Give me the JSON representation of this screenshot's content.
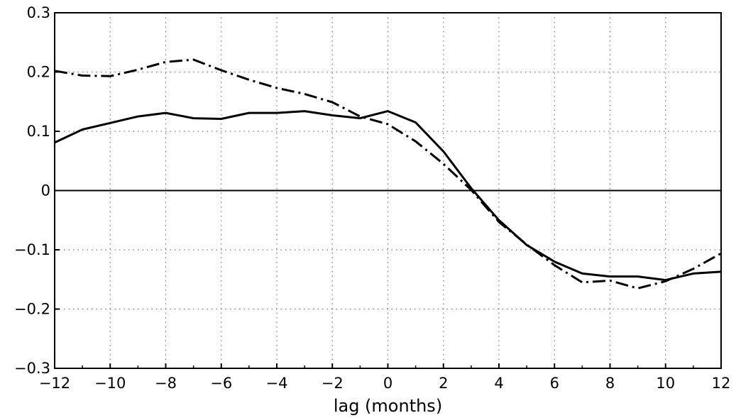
{
  "chart_data": {
    "type": "line",
    "title": "",
    "xlabel": "lag (months)",
    "ylabel": "",
    "xlim": [
      -12,
      12
    ],
    "ylim": [
      -0.3,
      0.3
    ],
    "grid": true,
    "x_ticks": [
      -12,
      -10,
      -8,
      -6,
      -4,
      -2,
      0,
      2,
      4,
      6,
      8,
      10,
      12
    ],
    "x_tick_labels": [
      "−12",
      "−10",
      "−8",
      "−6",
      "−4",
      "−2",
      "0",
      "2",
      "4",
      "6",
      "8",
      "10",
      "12"
    ],
    "y_ticks": [
      0.3,
      0.2,
      0.1,
      0,
      -0.1,
      -0.2,
      -0.3
    ],
    "y_tick_labels": [
      "0.3",
      "0.2",
      "0.1",
      "0",
      "−0.1",
      "−0.2",
      "−0.3"
    ],
    "x": [
      -12,
      -11,
      -10,
      -9,
      -8,
      -7,
      -6,
      -5,
      -4,
      -3,
      -2,
      -1,
      0,
      1,
      2,
      3,
      4,
      5,
      6,
      7,
      8,
      9,
      10,
      11,
      12
    ],
    "series": [
      {
        "style": "solid",
        "color": "#000000",
        "values": [
          0.081,
          0.103,
          0.114,
          0.125,
          0.131,
          0.122,
          0.121,
          0.131,
          0.131,
          0.134,
          0.127,
          0.122,
          0.134,
          0.115,
          0.066,
          0.004,
          -0.05,
          -0.092,
          -0.12,
          -0.14,
          -0.145,
          -0.145,
          -0.151,
          -0.14,
          -0.137
        ]
      },
      {
        "style": "dash-dot",
        "color": "#000000",
        "values": [
          0.202,
          0.194,
          0.193,
          0.204,
          0.217,
          0.221,
          0.203,
          0.187,
          0.173,
          0.163,
          0.149,
          0.125,
          0.112,
          0.083,
          0.045,
          0.001,
          -0.053,
          -0.091,
          -0.126,
          -0.155,
          -0.152,
          -0.165,
          -0.153,
          -0.132,
          -0.106
        ]
      }
    ],
    "zero_line": true
  }
}
